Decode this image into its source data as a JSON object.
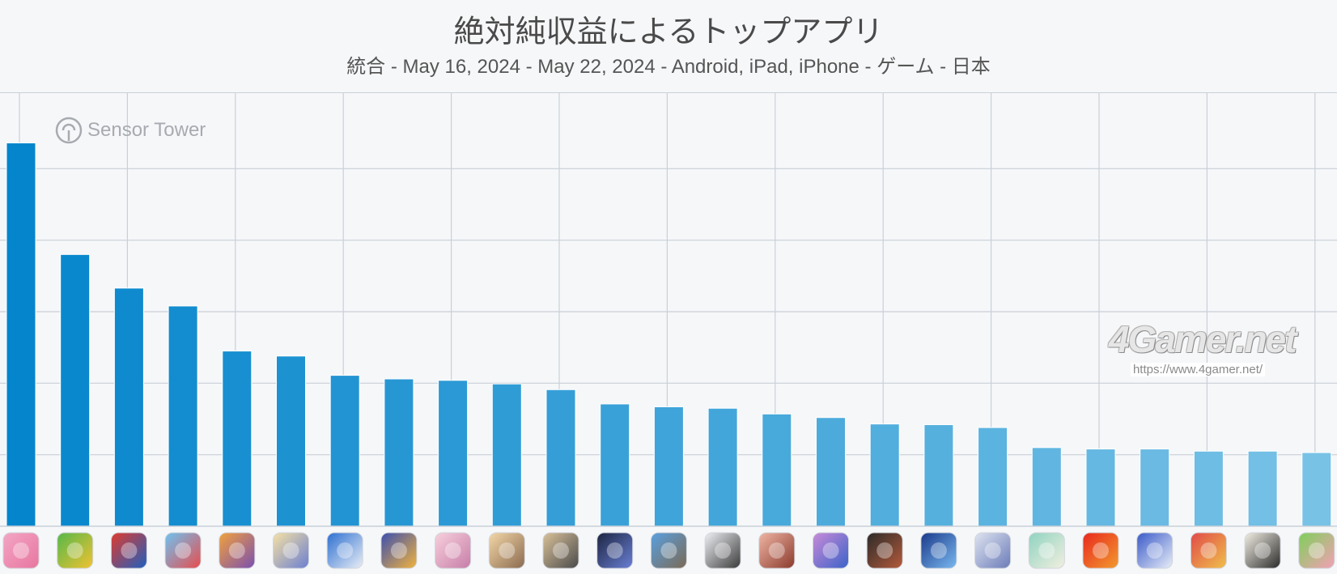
{
  "header": {
    "title": "絶対純収益によるトップアプリ",
    "subtitle": "統合 - May 16, 2024 - May 22, 2024 - Android, iPad, iPhone - ゲーム - 日本"
  },
  "logos": {
    "sensor_tower": "Sensor Tower",
    "watermark": "4Gamer.net",
    "watermark_url": "https://www.4gamer.net/"
  },
  "colors": {
    "bar_start": "#0585cc",
    "bar_end": "#78c2e6",
    "grid": "#c9d0d8",
    "background": "#f6f7f9"
  },
  "chart_data": {
    "type": "bar",
    "title": "絶対純収益によるトップアプリ",
    "subtitle": "統合 - May 16, 2024 - May 22, 2024 - Android, iPad, iPhone - ゲーム - 日本",
    "ylim": [
      0,
      6
    ],
    "grid": true,
    "values": [
      5.36,
      3.8,
      3.33,
      3.08,
      2.45,
      2.38,
      2.11,
      2.06,
      2.04,
      1.99,
      1.91,
      1.71,
      1.67,
      1.65,
      1.57,
      1.52,
      1.43,
      1.42,
      1.38,
      1.1,
      1.08,
      1.08,
      1.05,
      1.05,
      1.03
    ],
    "app_icons": [
      {
        "name": "app-icon-1",
        "colors": [
          "#f3a6c4",
          "#e8769f"
        ]
      },
      {
        "name": "app-icon-2",
        "colors": [
          "#55b84a",
          "#f1c232"
        ]
      },
      {
        "name": "app-icon-3",
        "colors": [
          "#e03b2d",
          "#1f5fbf"
        ]
      },
      {
        "name": "app-icon-4",
        "colors": [
          "#6ec3f2",
          "#e84c4c"
        ]
      },
      {
        "name": "app-icon-5",
        "colors": [
          "#f2a13c",
          "#7a4fb0"
        ]
      },
      {
        "name": "app-icon-6",
        "colors": [
          "#f5e1a4",
          "#6b7fd1"
        ]
      },
      {
        "name": "app-icon-7",
        "colors": [
          "#2d6fd1",
          "#e9eef5"
        ]
      },
      {
        "name": "app-icon-8",
        "colors": [
          "#3b4fb0",
          "#f2b33d"
        ]
      },
      {
        "name": "app-icon-9",
        "colors": [
          "#f7d0dc",
          "#c77da8"
        ]
      },
      {
        "name": "app-icon-10",
        "colors": [
          "#f3d7a8",
          "#8b6a4f"
        ]
      },
      {
        "name": "app-icon-11",
        "colors": [
          "#d9c19a",
          "#4a4a4a"
        ]
      },
      {
        "name": "app-icon-12",
        "colors": [
          "#1c2540",
          "#6a7fd6"
        ]
      },
      {
        "name": "app-icon-13",
        "colors": [
          "#5aa0e0",
          "#7b6a54"
        ]
      },
      {
        "name": "app-icon-14",
        "colors": [
          "#eef0f4",
          "#3a3a3a"
        ]
      },
      {
        "name": "app-icon-15",
        "colors": [
          "#f0b5a4",
          "#8a3a2c"
        ]
      },
      {
        "name": "app-icon-16",
        "colors": [
          "#c98bd8",
          "#3a62c8"
        ]
      },
      {
        "name": "app-icon-17",
        "colors": [
          "#2b2b2b",
          "#b55a3a"
        ]
      },
      {
        "name": "app-icon-18",
        "colors": [
          "#1a3a8a",
          "#7ab8f0"
        ]
      },
      {
        "name": "app-icon-19",
        "colors": [
          "#dfe4f0",
          "#6a7bb8"
        ]
      },
      {
        "name": "app-icon-20",
        "colors": [
          "#8fd3c0",
          "#f2efe0"
        ]
      },
      {
        "name": "app-icon-21",
        "colors": [
          "#e8281e",
          "#f29a2e"
        ]
      },
      {
        "name": "app-icon-22",
        "colors": [
          "#3a5ac8",
          "#e8eef8"
        ]
      },
      {
        "name": "app-icon-23",
        "colors": [
          "#e04a4a",
          "#f0c04a"
        ]
      },
      {
        "name": "app-icon-24",
        "colors": [
          "#f2efe4",
          "#2a2a2a"
        ]
      },
      {
        "name": "app-icon-25",
        "colors": [
          "#7ecf5a",
          "#f3a0b5"
        ]
      }
    ]
  }
}
